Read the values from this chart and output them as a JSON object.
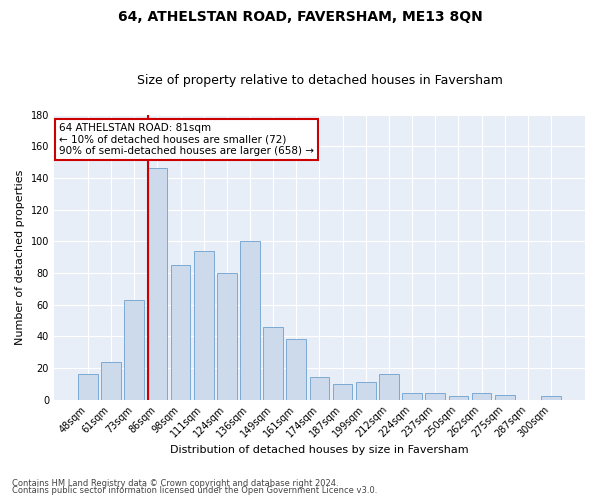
{
  "title": "64, ATHELSTAN ROAD, FAVERSHAM, ME13 8QN",
  "subtitle": "Size of property relative to detached houses in Faversham",
  "xlabel": "Distribution of detached houses by size in Faversham",
  "ylabel": "Number of detached properties",
  "footnote1": "Contains HM Land Registry data © Crown copyright and database right 2024.",
  "footnote2": "Contains public sector information licensed under the Open Government Licence v3.0.",
  "bins": [
    "48sqm",
    "61sqm",
    "73sqm",
    "86sqm",
    "98sqm",
    "111sqm",
    "124sqm",
    "136sqm",
    "149sqm",
    "161sqm",
    "174sqm",
    "187sqm",
    "199sqm",
    "212sqm",
    "224sqm",
    "237sqm",
    "250sqm",
    "262sqm",
    "275sqm",
    "287sqm",
    "300sqm"
  ],
  "values": [
    16,
    24,
    63,
    146,
    85,
    94,
    80,
    100,
    46,
    38,
    14,
    10,
    11,
    16,
    4,
    4,
    2,
    4,
    3,
    0,
    2
  ],
  "bar_color": "#ccdaec",
  "bar_edge_color": "#7baad4",
  "vline_color": "#cc0000",
  "vline_x_index": 3,
  "ylim": [
    0,
    180
  ],
  "yticks": [
    0,
    20,
    40,
    60,
    80,
    100,
    120,
    140,
    160,
    180
  ],
  "bg_color": "#e8eef7",
  "grid_color": "#ffffff",
  "annotation_line1": "64 ATHELSTAN ROAD: 81sqm",
  "annotation_line2": "← 10% of detached houses are smaller (72)",
  "annotation_line3": "90% of semi-detached houses are larger (658) →",
  "annotation_box_color": "white",
  "annotation_box_edge_color": "#cc0000",
  "title_fontsize": 10,
  "subtitle_fontsize": 9,
  "axis_label_fontsize": 8,
  "tick_fontsize": 7,
  "annotation_fontsize": 7.5,
  "footnote_fontsize": 6
}
